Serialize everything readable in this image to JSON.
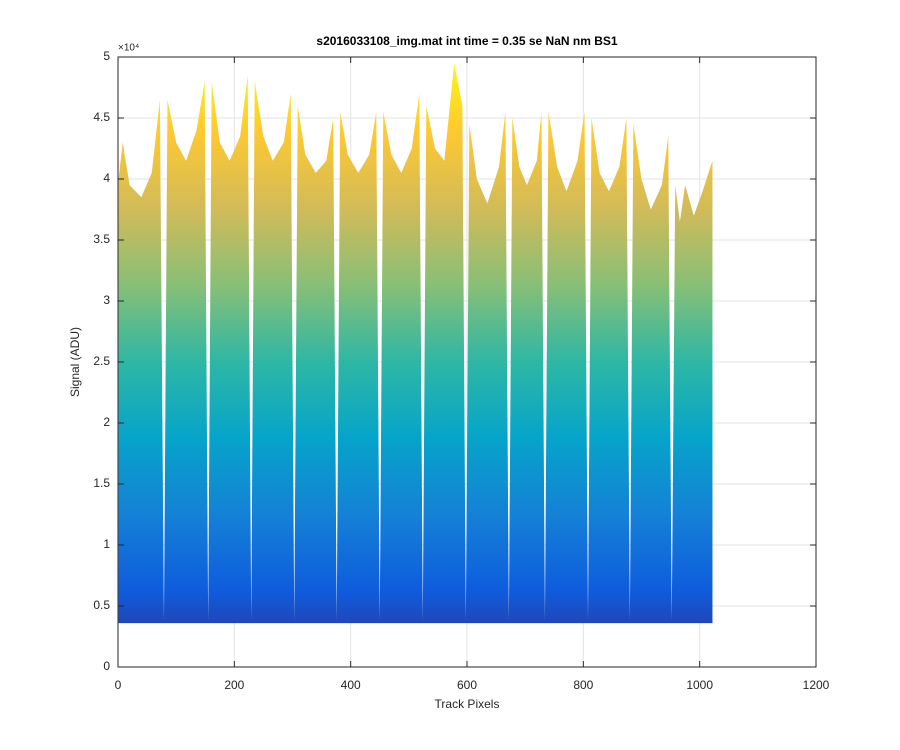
{
  "chart_data": {
    "type": "area",
    "title": "s2016033108_img.mat int time = 0.35 se  NaN nm BS1",
    "xlabel": "Track Pixels",
    "ylabel": "Signal (ADU)",
    "y_exponent": "×10⁴",
    "floor": 3600,
    "x": [
      1,
      8,
      20,
      40,
      58,
      72,
      79,
      85,
      100,
      117,
      135,
      149,
      155,
      161,
      175,
      192,
      210,
      223,
      229,
      235,
      250,
      266,
      285,
      297,
      303,
      309,
      322,
      340,
      358,
      370,
      376,
      382,
      395,
      413,
      432,
      444,
      450,
      456,
      470,
      487,
      505,
      518,
      524,
      530,
      545,
      561,
      578,
      592,
      598,
      604,
      617,
      635,
      655,
      666,
      672,
      678,
      690,
      703,
      720,
      728,
      734,
      740,
      755,
      771,
      790,
      802,
      808,
      814,
      828,
      844,
      862,
      874,
      880,
      886,
      900,
      916,
      935,
      946,
      952,
      958,
      966,
      975,
      990,
      1005,
      1022
    ],
    "values": [
      40000,
      43000,
      39500,
      38500,
      40500,
      46500,
      3800,
      46500,
      43000,
      41500,
      44000,
      48000,
      3800,
      48000,
      43000,
      41500,
      43500,
      48500,
      3800,
      48000,
      43500,
      41500,
      43000,
      47000,
      3800,
      46000,
      42000,
      40500,
      41500,
      45000,
      3800,
      45500,
      42000,
      40500,
      42000,
      45500,
      3800,
      45500,
      42000,
      40500,
      42500,
      47000,
      3800,
      46000,
      42500,
      41500,
      49500,
      46000,
      3800,
      44500,
      40000,
      38000,
      41000,
      45500,
      3800,
      45000,
      41000,
      39500,
      41500,
      45500,
      3800,
      45500,
      41000,
      39000,
      41500,
      45500,
      3800,
      45000,
      40500,
      39000,
      41000,
      45000,
      3800,
      44500,
      40000,
      37500,
      39500,
      43500,
      3800,
      39500,
      36500,
      39500,
      37000,
      39000,
      41500
    ],
    "colormap": [
      "#352a87",
      "#0f5cdd",
      "#1481d6",
      "#06a4ca",
      "#2eb7a4",
      "#87bf77",
      "#d1bb59",
      "#fec832",
      "#f9fb0e"
    ],
    "xlim": [
      0,
      1200
    ],
    "xticks": [
      0,
      200,
      400,
      600,
      800,
      1000,
      1200
    ],
    "ylim": [
      0,
      50000
    ],
    "yticks": [
      0,
      {
        "value": 5000,
        "label": "0.5"
      },
      {
        "value": 10000,
        "label": "1"
      },
      {
        "value": 15000,
        "label": "1.5"
      },
      {
        "value": 20000,
        "label": "2"
      },
      {
        "value": 25000,
        "label": "2.5"
      },
      {
        "value": 30000,
        "label": "3"
      },
      {
        "value": 35000,
        "label": "3.5"
      },
      {
        "value": 40000,
        "label": "4"
      },
      {
        "value": 45000,
        "label": "4.5"
      },
      {
        "value": 50000,
        "label": "5"
      }
    ],
    "grid": true
  }
}
